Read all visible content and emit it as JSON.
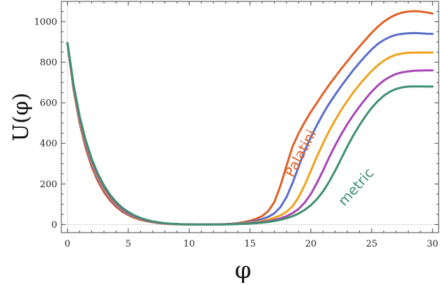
{
  "chart_data": {
    "type": "line",
    "title": "",
    "xlabel": "φ",
    "ylabel": "U(φ)",
    "xlim": [
      -0.5,
      30.5
    ],
    "ylim": [
      -40,
      1100
    ],
    "x_ticks": [
      0,
      5,
      10,
      15,
      20,
      25,
      30
    ],
    "y_ticks": [
      0,
      200,
      400,
      600,
      800,
      1000
    ],
    "grid": false,
    "legend": "none",
    "x": [
      0,
      0.5,
      1,
      1.5,
      2,
      2.5,
      3,
      3.5,
      4,
      4.5,
      5,
      5.5,
      6,
      6.5,
      7,
      7.5,
      8,
      8.5,
      9,
      9.5,
      10,
      10.5,
      11,
      11.5,
      12,
      12.5,
      13,
      13.5,
      14,
      14.5,
      15,
      15.5,
      16,
      16.5,
      17,
      17.5,
      18,
      18.5,
      19,
      19.5,
      20,
      20.5,
      21,
      21.5,
      22,
      22.5,
      23,
      23.5,
      24,
      24.5,
      25,
      25.5,
      26,
      26.5,
      27,
      27.5,
      28,
      28.5,
      29,
      29.5,
      30
    ],
    "series": [
      {
        "name": "Palatini",
        "color": "#e15f25",
        "values": [
          895,
          665,
          500,
          376,
          283,
          213,
          159,
          118,
          87,
          63,
          46,
          33,
          23,
          16,
          11,
          7,
          4,
          2,
          1,
          0.5,
          0.2,
          0,
          0,
          0,
          0.5,
          1,
          2,
          4,
          7,
          12,
          19,
          28,
          42,
          66,
          110,
          190,
          290,
          385,
          450,
          505,
          555,
          600,
          645,
          688,
          728,
          768,
          805,
          842,
          878,
          912,
          945,
          975,
          1000,
          1020,
          1035,
          1045,
          1050,
          1052,
          1050,
          1046,
          1040
        ]
      },
      {
        "name": "",
        "color": "#5b6dc8",
        "values": [
          895,
          672,
          510,
          388,
          295,
          224,
          169,
          127,
          94,
          69,
          51,
          37,
          26,
          18,
          12,
          8,
          5,
          3,
          1.5,
          0.7,
          0.2,
          0,
          0,
          0,
          0.3,
          0.8,
          1.5,
          3,
          5,
          8,
          13,
          19,
          27,
          38,
          55,
          85,
          135,
          205,
          285,
          365,
          430,
          490,
          545,
          595,
          640,
          683,
          723,
          762,
          798,
          832,
          863,
          890,
          910,
          925,
          935,
          940,
          943,
          944,
          943,
          941,
          940
        ]
      },
      {
        "name": "",
        "color": "#f0a21d",
        "values": [
          895,
          678,
          518,
          398,
          305,
          233,
          177,
          134,
          100,
          74,
          55,
          40,
          28,
          20,
          13,
          9,
          5.5,
          3.2,
          1.7,
          0.8,
          0.3,
          0,
          0,
          0,
          0.2,
          0.6,
          1.2,
          2.2,
          3.5,
          5.5,
          8.5,
          12,
          17,
          24,
          33,
          45,
          62,
          90,
          135,
          195,
          265,
          335,
          400,
          460,
          515,
          565,
          610,
          652,
          690,
          725,
          757,
          785,
          808,
          825,
          837,
          843,
          847,
          848,
          848,
          848,
          848
        ]
      },
      {
        "name": "",
        "color": "#a845b6",
        "values": [
          895,
          684,
          526,
          407,
          314,
          242,
          185,
          140,
          105,
          78,
          58,
          42,
          30,
          21,
          14,
          9.5,
          6,
          3.5,
          1.9,
          0.9,
          0.3,
          0,
          0,
          0,
          0.1,
          0.4,
          0.9,
          1.6,
          2.6,
          4,
          6,
          8.5,
          12,
          16,
          22,
          30,
          41,
          56,
          77,
          108,
          150,
          205,
          265,
          330,
          390,
          445,
          495,
          540,
          582,
          620,
          655,
          685,
          710,
          728,
          742,
          750,
          755,
          758,
          759,
          760,
          760
        ]
      },
      {
        "name": "metric",
        "color": "#3f8f71",
        "values": [
          895,
          690,
          534,
          416,
          323,
          250,
          193,
          147,
          111,
          83,
          62,
          45,
          32,
          23,
          15.5,
          10.5,
          6.5,
          3.8,
          2.1,
          1,
          0.3,
          0,
          0,
          0,
          0,
          0.2,
          0.6,
          1.1,
          1.9,
          3,
          4.5,
          6.5,
          9,
          12.5,
          17,
          23,
          31,
          41,
          54,
          72,
          95,
          125,
          163,
          210,
          265,
          325,
          385,
          440,
          490,
          535,
          575,
          608,
          635,
          655,
          668,
          676,
          680,
          681,
          681,
          680,
          680
        ]
      }
    ],
    "annotations": [
      {
        "text": "Palatini",
        "x": 19.5,
        "y": 340,
        "angle": -62,
        "color": "#e15f25"
      },
      {
        "text": "metric",
        "x": 24,
        "y": 170,
        "angle": -48,
        "color": "#3f8f71"
      }
    ]
  }
}
